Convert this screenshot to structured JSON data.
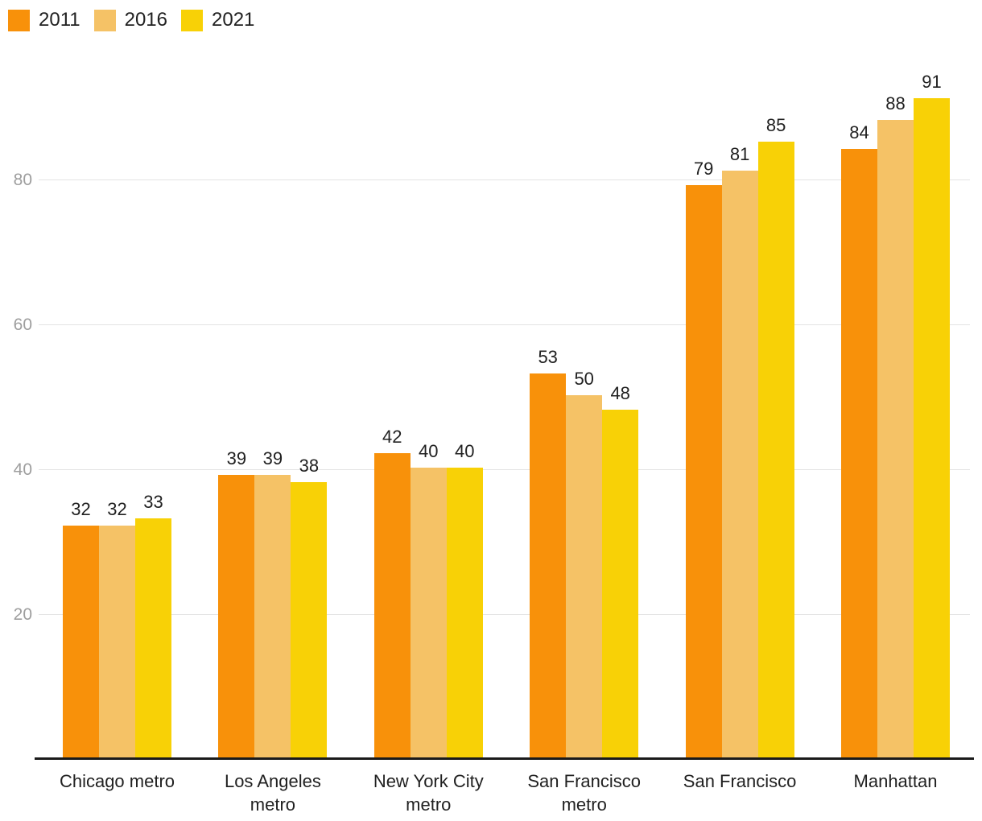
{
  "chart_data": {
    "type": "bar",
    "categories": [
      "Chicago metro",
      "Los Angeles metro",
      "New York City metro",
      "San Francisco metro",
      "San Francisco",
      "Manhattan"
    ],
    "series": [
      {
        "name": "2011",
        "color": "#F8910A",
        "values": [
          32,
          39,
          42,
          53,
          79,
          84
        ]
      },
      {
        "name": "2016",
        "color": "#F5C266",
        "values": [
          32,
          39,
          40,
          50,
          81,
          88
        ]
      },
      {
        "name": "2021",
        "color": "#F8D106",
        "values": [
          33,
          38,
          40,
          48,
          85,
          91
        ]
      }
    ],
    "yticks": [
      20,
      40,
      60,
      80
    ],
    "ylim": [
      0,
      100
    ],
    "grid": true,
    "legend_position": "top-left",
    "value_labels": true,
    "title": "",
    "xlabel": "",
    "ylabel": ""
  },
  "colors": {
    "gridline": "#e4e4e4",
    "axis_line": "#1a1a1a",
    "tick_label": "#9e9e9e",
    "text": "#212121",
    "background": "#ffffff"
  }
}
